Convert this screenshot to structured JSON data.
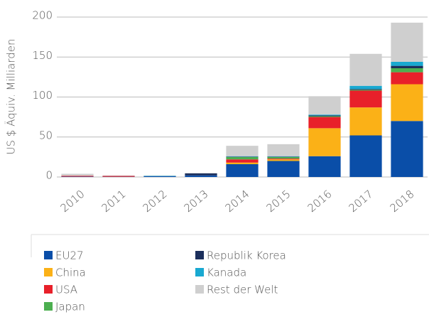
{
  "chart_data": {
    "type": "bar",
    "stacked": true,
    "y_label": "US $ Äquiv. Milliarden",
    "categories": [
      "2010",
      "2011",
      "2012",
      "2013",
      "2014",
      "2015",
      "2016",
      "2017",
      "2018"
    ],
    "series": [
      {
        "name": "EU27",
        "color": "#0a4ea8",
        "values": [
          0.5,
          0.3,
          1,
          2,
          16,
          20,
          26,
          52,
          70
        ]
      },
      {
        "name": "China",
        "color": "#fbb117",
        "values": [
          0,
          0,
          0,
          0,
          2,
          2,
          35,
          35,
          46
        ]
      },
      {
        "name": "USA",
        "color": "#e8202a",
        "values": [
          1,
          1,
          0,
          0,
          4,
          1,
          14,
          21,
          15
        ]
      },
      {
        "name": "Japan",
        "color": "#4caf50",
        "values": [
          0,
          0,
          0,
          0,
          3,
          2,
          1,
          1,
          5
        ]
      },
      {
        "name": "Republik Korea",
        "color": "#1b2f5c",
        "values": [
          0,
          0,
          0,
          2.5,
          0.5,
          0.5,
          1,
          1,
          3
        ]
      },
      {
        "name": "Kanada",
        "color": "#19a9d1",
        "values": [
          0,
          0,
          0.5,
          0,
          0.5,
          0.5,
          1,
          4,
          5
        ]
      },
      {
        "name": "Rest der Welt",
        "color": "#cfcfcf",
        "values": [
          2.5,
          0.7,
          0.5,
          0.5,
          13,
          15,
          23,
          40,
          49
        ]
      }
    ],
    "ylim": [
      0,
      200
    ],
    "yticks": [
      0,
      50,
      100,
      150,
      200
    ],
    "grid": true
  }
}
